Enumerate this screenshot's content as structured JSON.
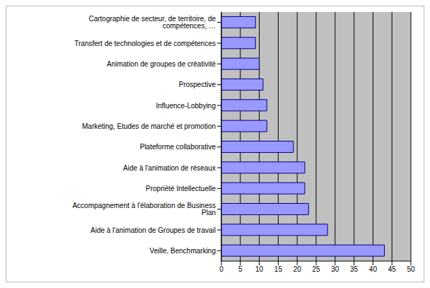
{
  "chart_data": {
    "type": "bar",
    "orientation": "horizontal",
    "categories": [
      "Cartographie de secteur, de territoire, de compétences, …",
      "Transfert de technologies et de compétences",
      "Animation de groupes de créativité",
      "Prospective",
      "Influence-Lobbying",
      "Marketing, Etudes de marché et promotion",
      "Plateforme collaborative",
      "Aide à l'animation de réseaux",
      "Propriété Intellectuelle",
      "Accompagnement à l'élaboration de Business Plan",
      "Aide à l'animation de Groupes de travail",
      "Veille, Benchmarking"
    ],
    "values": [
      9,
      9,
      10,
      11,
      12,
      12,
      19,
      22,
      22,
      23,
      28,
      43
    ],
    "color": "#9999ff",
    "xlim": [
      0,
      50
    ],
    "xticks": [
      0,
      5,
      10,
      15,
      20,
      25,
      30,
      35,
      40,
      45,
      50
    ],
    "grid": true
  }
}
